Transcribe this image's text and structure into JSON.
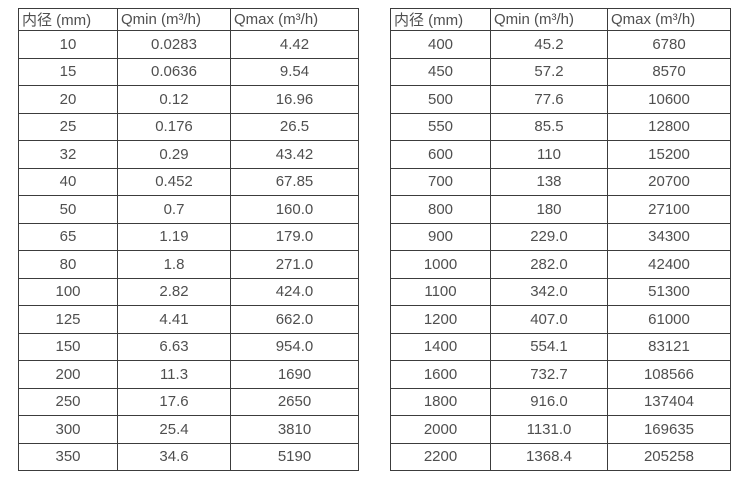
{
  "page": {
    "background_color": "#ffffff",
    "border_color": "#3c3c3c",
    "text_color": "#4f4f4f"
  },
  "tables": [
    {
      "name": "flow-spec-table-small-diameters",
      "headers": [
        "内径 (mm)",
        "Qmin (m³/h)",
        "Qmax (m³/h)"
      ],
      "rows": [
        [
          "10",
          "0.0283",
          "4.42"
        ],
        [
          "15",
          "0.0636",
          "9.54"
        ],
        [
          "20",
          "0.12",
          "16.96"
        ],
        [
          "25",
          "0.176",
          "26.5"
        ],
        [
          "32",
          "0.29",
          "43.42"
        ],
        [
          "40",
          "0.452",
          "67.85"
        ],
        [
          "50",
          "0.7",
          "160.0"
        ],
        [
          "65",
          "1.19",
          "179.0"
        ],
        [
          "80",
          "1.8",
          "271.0"
        ],
        [
          "100",
          "2.82",
          "424.0"
        ],
        [
          "125",
          "4.41",
          "662.0"
        ],
        [
          "150",
          "6.63",
          "954.0"
        ],
        [
          "200",
          "11.3",
          "1690"
        ],
        [
          "250",
          "17.6",
          "2650"
        ],
        [
          "300",
          "25.4",
          "3810"
        ],
        [
          "350",
          "34.6",
          "5190"
        ]
      ]
    },
    {
      "name": "flow-spec-table-large-diameters",
      "headers": [
        "内径 (mm)",
        "Qmin (m³/h)",
        "Qmax (m³/h)"
      ],
      "rows": [
        [
          "400",
          "45.2",
          "6780"
        ],
        [
          "450",
          "57.2",
          "8570"
        ],
        [
          "500",
          "77.6",
          "10600"
        ],
        [
          "550",
          "85.5",
          "12800"
        ],
        [
          "600",
          "110",
          "15200"
        ],
        [
          "700",
          "138",
          "20700"
        ],
        [
          "800",
          "180",
          "27100"
        ],
        [
          "900",
          "229.0",
          "34300"
        ],
        [
          "1000",
          "282.0",
          "42400"
        ],
        [
          "1100",
          "342.0",
          "51300"
        ],
        [
          "1200",
          "407.0",
          "61000"
        ],
        [
          "1400",
          "554.1",
          "83121"
        ],
        [
          "1600",
          "732.7",
          "108566"
        ],
        [
          "1800",
          "916.0",
          "137404"
        ],
        [
          "2000",
          "1131.0",
          "169635"
        ],
        [
          "2200",
          "1368.4",
          "205258"
        ]
      ]
    }
  ]
}
